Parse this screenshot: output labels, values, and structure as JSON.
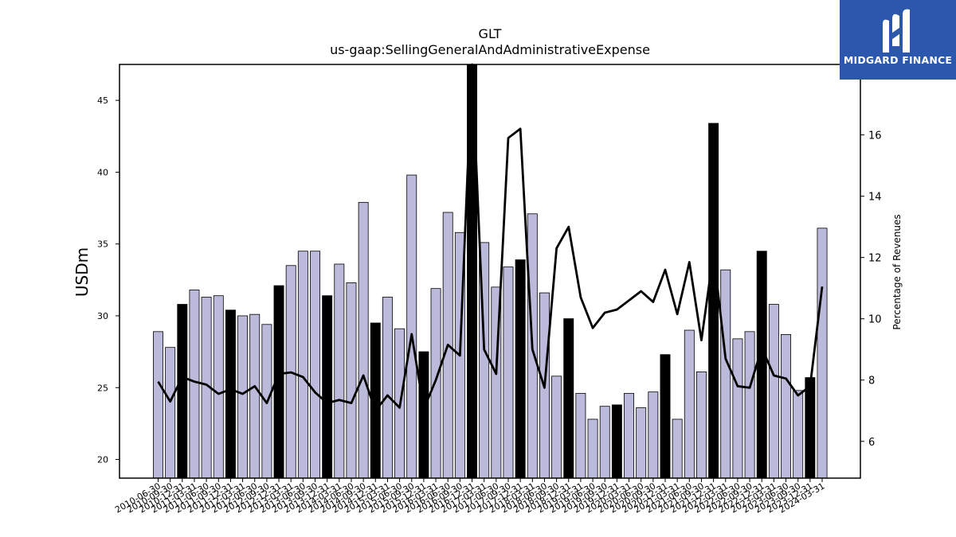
{
  "brand": {
    "name": "MIDGARD FINANCE",
    "bg_color": "#2b58ad"
  },
  "chart_data": {
    "type": "bar",
    "title": "GLT",
    "subtitle": "us-gaap:SellingGeneralAndAdministrativeExpense",
    "ylabel": "USDm",
    "y2label": "Percentage of Revenues",
    "ylim": [
      18.7,
      47.5
    ],
    "y2lim": [
      4.8,
      18.3
    ],
    "yticks": [
      20,
      25,
      30,
      35,
      40,
      45
    ],
    "y2ticks": [
      6,
      8,
      10,
      12,
      14,
      16
    ],
    "colors": {
      "quarter": "#bcbadb",
      "fiscal_year_end": "#000000",
      "line": "#000000"
    },
    "categories": [
      "2010-06-30",
      "2010-09-30",
      "2010-12-31",
      "2011-03-31",
      "2011-06-30",
      "2011-09-30",
      "2011-12-31",
      "2012-03-31",
      "2012-06-30",
      "2012-09-30",
      "2012-12-31",
      "2013-03-31",
      "2013-06-30",
      "2013-09-30",
      "2013-12-31",
      "2014-03-31",
      "2014-06-30",
      "2014-09-30",
      "2014-12-31",
      "2015-03-31",
      "2015-06-30",
      "2015-09-30",
      "2015-12-31",
      "2016-03-31",
      "2016-06-30",
      "2016-09-30",
      "2016-12-31",
      "2017-03-31",
      "2017-06-30",
      "2017-09-30",
      "2017-12-31",
      "2018-03-31",
      "2018-06-30",
      "2018-09-30",
      "2018-12-31",
      "2019-03-31",
      "2019-06-30",
      "2019-09-30",
      "2019-12-31",
      "2020-03-31",
      "2020-06-30",
      "2020-09-30",
      "2020-12-31",
      "2021-03-31",
      "2021-06-30",
      "2021-09-30",
      "2021-12-31",
      "2022-03-31",
      "2022-06-30",
      "2022-09-30",
      "2022-12-31",
      "2023-03-31",
      "2023-06-30",
      "2023-09-30",
      "2023-12-31",
      "2024-03-31"
    ],
    "series": [
      {
        "values": [
          28.9,
          27.8,
          30.8,
          31.8,
          31.3,
          31.4,
          30.4,
          30.0,
          30.1,
          29.4,
          32.1,
          33.5,
          34.5,
          34.5,
          31.4,
          33.6,
          32.3,
          37.9,
          29.5,
          31.3,
          29.1,
          39.8,
          27.5,
          31.9,
          37.2,
          35.8,
          47.5,
          35.1,
          32.0,
          33.4,
          33.9,
          37.1,
          31.6,
          25.8,
          29.8,
          24.6,
          22.8,
          23.7,
          23.8,
          24.6,
          23.6,
          24.7,
          27.3,
          22.8,
          29.0,
          26.1,
          43.4,
          33.2,
          28.4,
          28.9,
          34.5,
          30.8,
          28.7,
          24.8,
          25.7,
          36.1
        ],
        "fiscal_year_end": [
          false,
          false,
          true,
          false,
          false,
          false,
          true,
          false,
          false,
          false,
          true,
          false,
          false,
          false,
          true,
          false,
          false,
          false,
          true,
          false,
          false,
          false,
          true,
          false,
          false,
          false,
          true,
          false,
          false,
          false,
          true,
          false,
          false,
          false,
          true,
          false,
          false,
          false,
          true,
          false,
          false,
          false,
          true,
          false,
          false,
          false,
          true,
          false,
          false,
          false,
          true,
          false,
          false,
          false,
          true,
          false
        ]
      },
      {
        "axis": "right",
        "values": [
          7.95,
          7.3,
          8.1,
          7.95,
          7.85,
          7.55,
          7.7,
          7.55,
          7.8,
          7.25,
          8.2,
          8.25,
          8.1,
          7.6,
          7.25,
          7.35,
          7.25,
          8.15,
          7.0,
          7.5,
          7.1,
          9.5,
          7.05,
          8.0,
          9.15,
          8.8,
          18.3,
          9.0,
          8.2,
          15.9,
          16.2,
          9.0,
          7.75,
          12.3,
          13.0,
          10.7,
          9.7,
          10.2,
          10.3,
          10.6,
          10.9,
          10.55,
          11.6,
          10.15,
          11.85,
          9.3,
          12.15,
          8.7,
          7.8,
          7.75,
          9.05,
          8.15,
          8.05,
          7.5,
          7.8,
          11.05
        ]
      }
    ]
  }
}
